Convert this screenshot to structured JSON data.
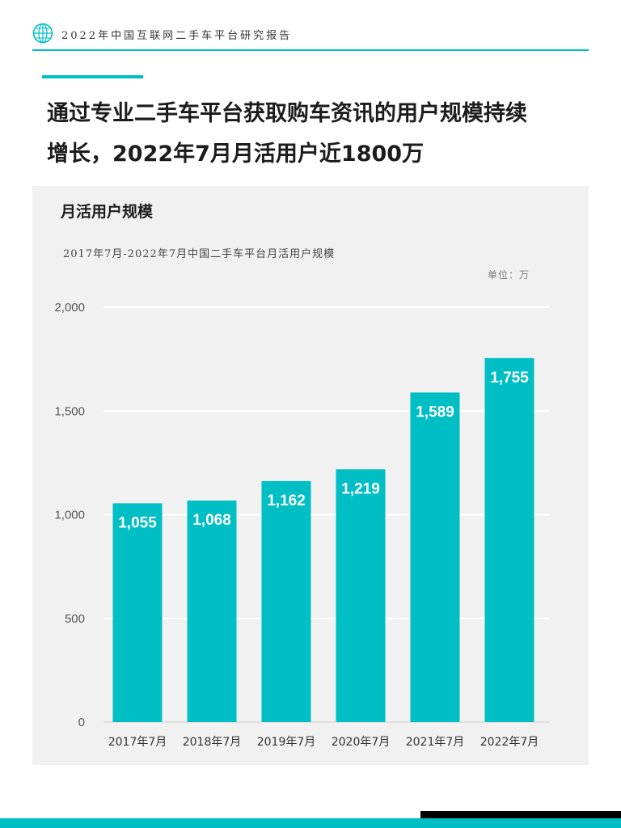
{
  "header": {
    "report_title": "2022年中国互联网二手车平台研究报告",
    "logo_icon": "globe-logo-icon"
  },
  "headline": {
    "line1": "通过专业二手车平台获取购车资讯的用户规模持续",
    "line2": "增长，2022年7月月活用户近1800万"
  },
  "panel": {
    "title": "月活用户规模",
    "subtitle": "2017年7月-2022年7月中国二手车平台月活用户规模",
    "unit": "单位：万"
  },
  "colors": {
    "accent": "#00bfc4",
    "bar": "#00bfc4",
    "panel_bg": "#f1f1f1",
    "footer_black": "#000000"
  },
  "chart_data": {
    "type": "bar",
    "title": "2017年7月-2022年7月中国二手车平台月活用户规模",
    "xlabel": "",
    "ylabel": "",
    "unit": "单位：万",
    "categories": [
      "2017年7月",
      "2018年7月",
      "2019年7月",
      "2020年7月",
      "2021年7月",
      "2022年7月"
    ],
    "values": [
      1055,
      1068,
      1162,
      1219,
      1589,
      1755
    ],
    "value_labels": [
      "1,055",
      "1,068",
      "1,162",
      "1,219",
      "1,589",
      "1,755"
    ],
    "ylim": [
      0,
      2000
    ],
    "yticks": [
      0,
      500,
      1000,
      1500,
      2000
    ],
    "ytick_labels": [
      "0",
      "500",
      "1,000",
      "1,500",
      "2,000"
    ],
    "grid": true,
    "legend": "none"
  }
}
